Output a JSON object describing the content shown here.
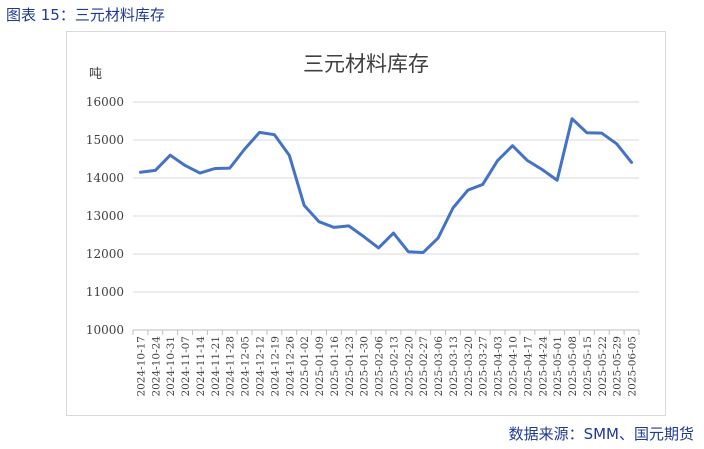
{
  "caption": "图表 15：三元材料库存",
  "source": "数据来源：SMM、国元期货",
  "chart_data": {
    "type": "line",
    "title": "三元材料库存",
    "unit_label": "吨",
    "ylim": [
      10000,
      16000
    ],
    "yticks": [
      10000,
      11000,
      12000,
      13000,
      14000,
      15000,
      16000
    ],
    "grid": true,
    "line_color": "#4472C4",
    "x": [
      "2024-10-17",
      "2024-10-24",
      "2024-10-31",
      "2024-11-07",
      "2024-11-14",
      "2024-11-21",
      "2024-11-28",
      "2024-12-05",
      "2024-12-12",
      "2024-12-19",
      "2024-12-26",
      "2025-01-02",
      "2025-01-09",
      "2025-01-16",
      "2025-01-23",
      "2025-01-30",
      "2025-02-06",
      "2025-02-13",
      "2025-02-20",
      "2025-02-27",
      "2025-03-06",
      "2025-03-13",
      "2025-03-20",
      "2025-03-27",
      "2025-04-03",
      "2025-04-10",
      "2025-04-17",
      "2025-04-24",
      "2025-05-01",
      "2025-05-08",
      "2025-05-15",
      "2025-05-22",
      "2025-05-29",
      "2025-06-05"
    ],
    "xtick_labels": [
      "2024-10-17",
      "2024-10-24",
      "2024-10-31",
      "2024-11-07",
      "2024-11-14",
      "2024-11-21",
      "2024-11-28",
      "2024-12-05",
      "2024-12-12",
      "2024-12-19",
      "2024-12-26",
      "2025-01-02",
      "2025-01-09",
      "2025-01-16",
      "2025-01-23",
      "2025-01-30",
      "2025-02-06",
      "2025-02-13",
      "2025-02-20",
      "2025-02-27",
      "2025-03-06",
      "2025-03-13",
      "2025-03-20",
      "2025-03-27",
      "2025-04-03",
      "2025-04-10",
      "2025-04-17",
      "2025-04-24",
      "2025-05-01",
      "2025-05-08",
      "2025-05-15",
      "2025-05-22",
      "2025-05-29",
      "2025-06-05"
    ],
    "values": [
      14150,
      14200,
      14600,
      14330,
      14130,
      14250,
      14260,
      14760,
      15200,
      15140,
      14600,
      13280,
      12850,
      12700,
      12740,
      12460,
      12160,
      12550,
      12060,
      12040,
      12420,
      13210,
      13680,
      13830,
      14460,
      14850,
      14460,
      14220,
      13940,
      15560,
      15190,
      15180,
      14900,
      14410
    ]
  }
}
